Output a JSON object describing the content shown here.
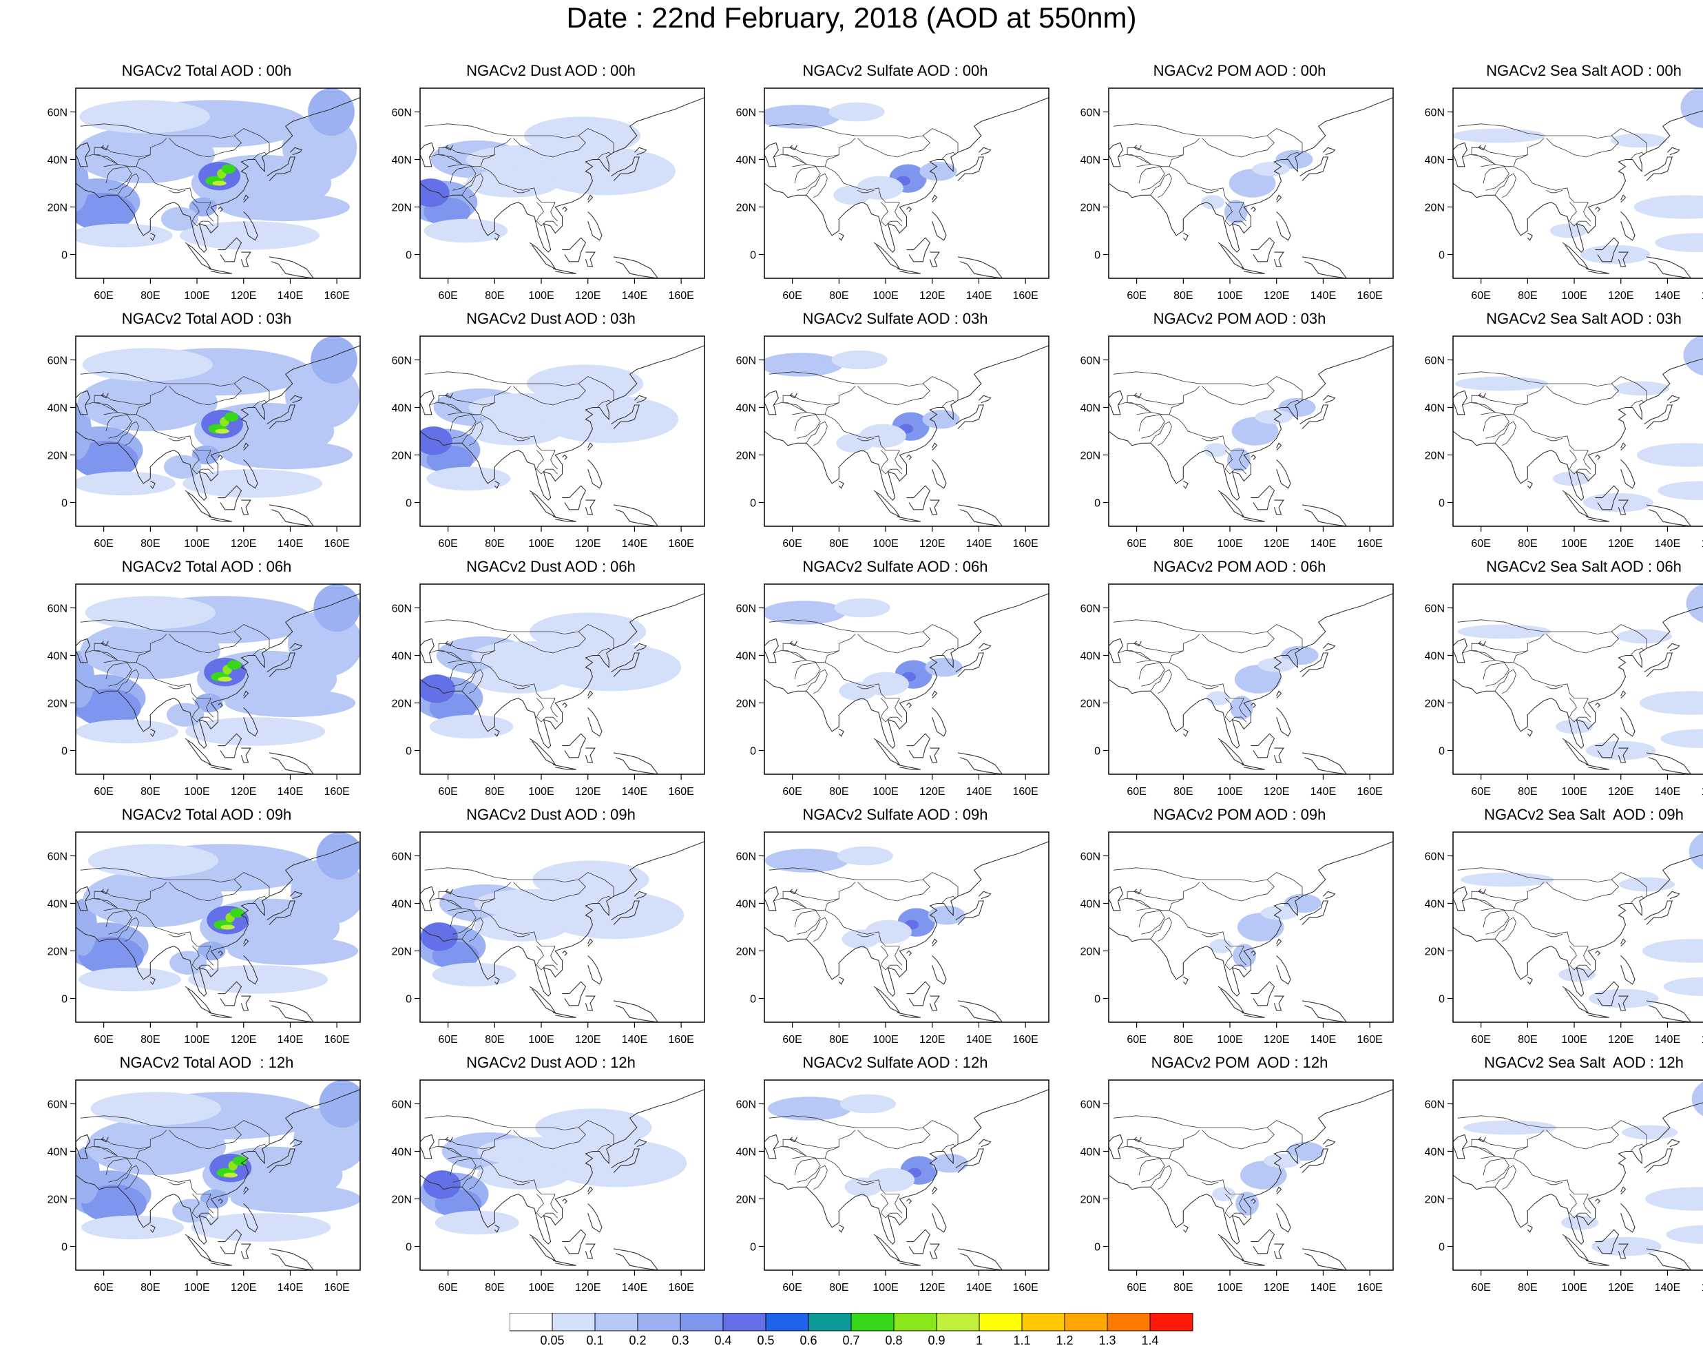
{
  "page_title": "Date : 22nd February, 2018 (AOD at 550nm)",
  "colors": {
    "land_outline": "#333333",
    "frame": "#000000"
  },
  "axes": {
    "lon_range": [
      48,
      170
    ],
    "lat_range": [
      -10,
      70
    ],
    "x_ticks": [
      "60E",
      "80E",
      "100E",
      "120E",
      "140E",
      "160E"
    ],
    "x_tick_values": [
      60,
      80,
      100,
      120,
      140,
      160
    ],
    "y_ticks": [
      "0",
      "20N",
      "40N",
      "60N"
    ],
    "y_tick_values": [
      0,
      20,
      40,
      60
    ]
  },
  "colorbar": {
    "levels": [
      "0.05",
      "0.1",
      "0.2",
      "0.3",
      "0.4",
      "0.5",
      "0.6",
      "0.7",
      "0.8",
      "0.9",
      "1",
      "1.1",
      "1.2",
      "1.3",
      "1.4"
    ],
    "colors": [
      "#ffffff",
      "#d4dffa",
      "#b8c8f6",
      "#9cb1f2",
      "#7f96ee",
      "#6370e8",
      "#1e63ea",
      "#0b9a97",
      "#37d81a",
      "#8ae81a",
      "#c2ee3c",
      "#ffff00",
      "#ffc800",
      "#ffa600",
      "#ff7a00",
      "#ff1a0a"
    ]
  },
  "rows": [
    {
      "time": "00h",
      "panels": [
        {
          "species": "total",
          "title": "NGACv2 Total AOD : 00h"
        },
        {
          "species": "dust",
          "title": "NGACv2 Dust AOD : 00h"
        },
        {
          "species": "sulfate",
          "title": "NGACv2 Sulfate AOD : 00h"
        },
        {
          "species": "pom",
          "title": "NGACv2 POM AOD : 00h"
        },
        {
          "species": "seasalt",
          "title": "NGACv2 Sea Salt AOD : 00h"
        }
      ]
    },
    {
      "time": "03h",
      "panels": [
        {
          "species": "total",
          "title": "NGACv2 Total AOD : 03h"
        },
        {
          "species": "dust",
          "title": "NGACv2 Dust AOD : 03h"
        },
        {
          "species": "sulfate",
          "title": "NGACv2 Sulfate AOD : 03h"
        },
        {
          "species": "pom",
          "title": "NGACv2 POM AOD : 03h"
        },
        {
          "species": "seasalt",
          "title": "NGACv2 Sea Salt AOD : 03h"
        }
      ]
    },
    {
      "time": "06h",
      "panels": [
        {
          "species": "total",
          "title": "NGACv2 Total AOD : 06h"
        },
        {
          "species": "dust",
          "title": "NGACv2 Dust AOD : 06h"
        },
        {
          "species": "sulfate",
          "title": "NGACv2 Sulfate AOD : 06h"
        },
        {
          "species": "pom",
          "title": "NGACv2 POM AOD : 06h"
        },
        {
          "species": "seasalt",
          "title": "NGACv2 Sea Salt AOD : 06h"
        }
      ]
    },
    {
      "time": "09h",
      "panels": [
        {
          "species": "total",
          "title": "NGACv2 Total AOD : 09h"
        },
        {
          "species": "dust",
          "title": "NGACv2 Dust AOD : 09h"
        },
        {
          "species": "sulfate",
          "title": "NGACv2 Sulfate AOD : 09h"
        },
        {
          "species": "pom",
          "title": "NGACv2 POM AOD : 09h"
        },
        {
          "species": "seasalt",
          "title": "NGACv2 Sea Salt  AOD : 09h"
        }
      ]
    },
    {
      "time": "12h",
      "panels": [
        {
          "species": "total",
          "title": "NGACv2 Total AOD  : 12h"
        },
        {
          "species": "dust",
          "title": "NGACv2 Dust AOD : 12h"
        },
        {
          "species": "sulfate",
          "title": "NGACv2 Sulfate AOD : 12h"
        },
        {
          "species": "pom",
          "title": "NGACv2 POM  AOD : 12h"
        },
        {
          "species": "seasalt",
          "title": "NGACv2 Sea Salt  AOD : 12h"
        }
      ]
    }
  ]
}
